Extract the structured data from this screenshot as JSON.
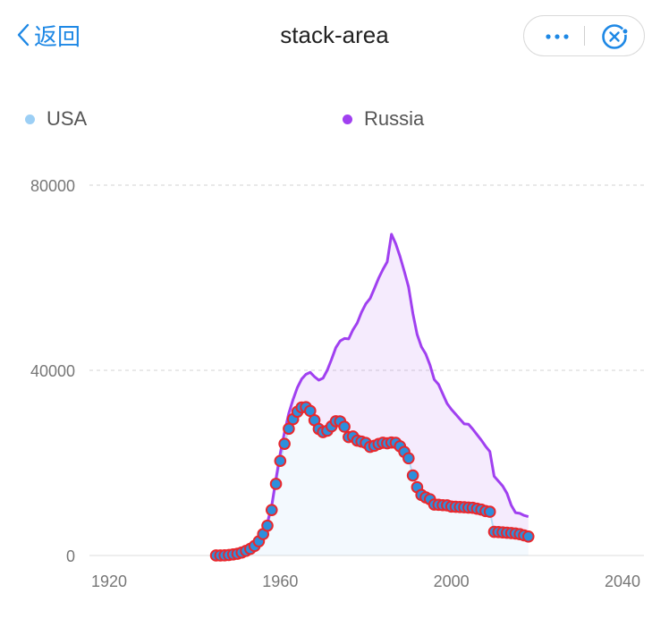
{
  "nav": {
    "back_label": "返回",
    "title": "stack-area"
  },
  "capsule": {
    "more_icon": "more-icon",
    "close_icon": "close-icon"
  },
  "legend": [
    {
      "name": "USA",
      "color": "#9ccff5"
    },
    {
      "name": "Russia",
      "color": "#a040f0"
    }
  ],
  "chart_data": {
    "type": "area",
    "stacked": true,
    "title": "stack-area",
    "xlabel": "",
    "ylabel": "",
    "xlim": [
      1920,
      2040
    ],
    "ylim": [
      0,
      80000
    ],
    "x_ticks": [
      1920,
      1960,
      2000,
      2040
    ],
    "y_ticks": [
      0,
      40000,
      80000
    ],
    "grid": "horizontal dashed",
    "legend_position": "top",
    "x": [
      1945,
      1946,
      1947,
      1948,
      1949,
      1950,
      1951,
      1952,
      1953,
      1954,
      1955,
      1956,
      1957,
      1958,
      1959,
      1960,
      1961,
      1962,
      1963,
      1964,
      1965,
      1966,
      1967,
      1968,
      1969,
      1970,
      1971,
      1972,
      1973,
      1974,
      1975,
      1976,
      1977,
      1978,
      1979,
      1980,
      1981,
      1982,
      1983,
      1984,
      1985,
      1986,
      1987,
      1988,
      1989,
      1990,
      1991,
      1992,
      1993,
      1994,
      1995,
      1996,
      1997,
      1998,
      1999,
      2000,
      2001,
      2002,
      2003,
      2004,
      2005,
      2006,
      2007,
      2008,
      2009,
      2010,
      2011,
      2012,
      2013,
      2014,
      2015,
      2016,
      2017,
      2018
    ],
    "series": [
      {
        "name": "USA",
        "color": "#9ccff5",
        "values": [
          6,
          11,
          32,
          110,
          235,
          369,
          640,
          1005,
          1436,
          2063,
          3057,
          4618,
          6444,
          9822,
          15468,
          20434,
          24126,
          27387,
          29459,
          31056,
          31982,
          32040,
          31233,
          29224,
          27342,
          26662,
          26956,
          27912,
          28999,
          28965,
          27826,
          25579,
          25722,
          24826,
          24605,
          24304,
          23464,
          23708,
          24099,
          24357,
          24237,
          24401,
          24344,
          23586,
          22380,
          21004,
          17287,
          14747,
          13076,
          12555,
          12144,
          11009,
          10953,
          10871,
          10824,
          10577,
          10527,
          10475,
          10421,
          10358,
          10295,
          10104,
          9914,
          9595,
          9450,
          5113,
          5066,
          4994,
          4917,
          4837,
          4756,
          4608,
          4350,
          4100
        ]
      },
      {
        "name": "Russia",
        "color": "#a040f0",
        "values": [
          0,
          0,
          0,
          0,
          1,
          5,
          25,
          50,
          120,
          150,
          200,
          426,
          660,
          869,
          1060,
          1605,
          2471,
          3322,
          4238,
          5221,
          6129,
          7089,
          8339,
          9399,
          10538,
          11643,
          13092,
          14478,
          15915,
          17385,
          19055,
          21205,
          23044,
          25393,
          27935,
          30062,
          32049,
          33952,
          35804,
          37431,
          39197,
          45000,
          43000,
          41000,
          39000,
          37000,
          35000,
          33000,
          32000,
          31000,
          29000,
          27000,
          26000,
          24000,
          22000,
          21000,
          20000,
          19000,
          18000,
          18000,
          17000,
          16000,
          15000,
          14000,
          13000,
          12000,
          11000,
          10000,
          8500,
          6000,
          4500,
          4500,
          4300,
          4300
        ]
      }
    ]
  }
}
